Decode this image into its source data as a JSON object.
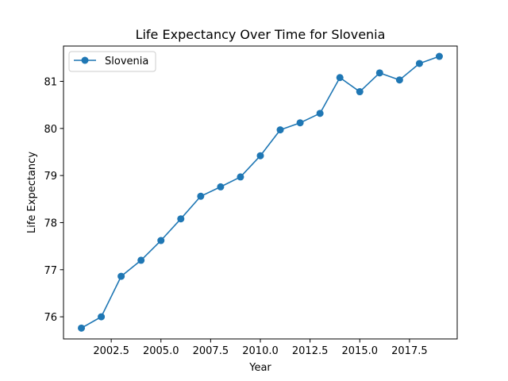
{
  "chart_data": {
    "type": "line",
    "title": "Life Expectancy Over Time for Slovenia",
    "xlabel": "Year",
    "ylabel": "Life Expectancy",
    "xlim": [
      2000.1,
      2019.9
    ],
    "ylim": [
      75.53,
      81.75
    ],
    "xticks": [
      2002.5,
      2005.0,
      2007.5,
      2010.0,
      2012.5,
      2015.0,
      2017.5
    ],
    "xtick_labels": [
      "2002.5",
      "2005.0",
      "2007.5",
      "2010.0",
      "2012.5",
      "2015.0",
      "2017.5"
    ],
    "yticks": [
      76,
      77,
      78,
      79,
      80,
      81
    ],
    "ytick_labels": [
      "76",
      "77",
      "78",
      "79",
      "80",
      "81"
    ],
    "grid": false,
    "legend_position": "upper-left",
    "series": [
      {
        "name": "Slovenia",
        "color": "#1f77b4",
        "marker": "circle",
        "x": [
          2001,
          2002,
          2003,
          2004,
          2005,
          2006,
          2007,
          2008,
          2009,
          2010,
          2011,
          2012,
          2013,
          2014,
          2015,
          2016,
          2017,
          2018,
          2019
        ],
        "y": [
          75.76,
          76.0,
          76.86,
          77.2,
          77.62,
          78.08,
          78.56,
          78.76,
          78.97,
          79.42,
          79.97,
          80.12,
          80.32,
          81.08,
          80.78,
          81.18,
          81.03,
          81.38,
          81.53
        ]
      }
    ]
  }
}
